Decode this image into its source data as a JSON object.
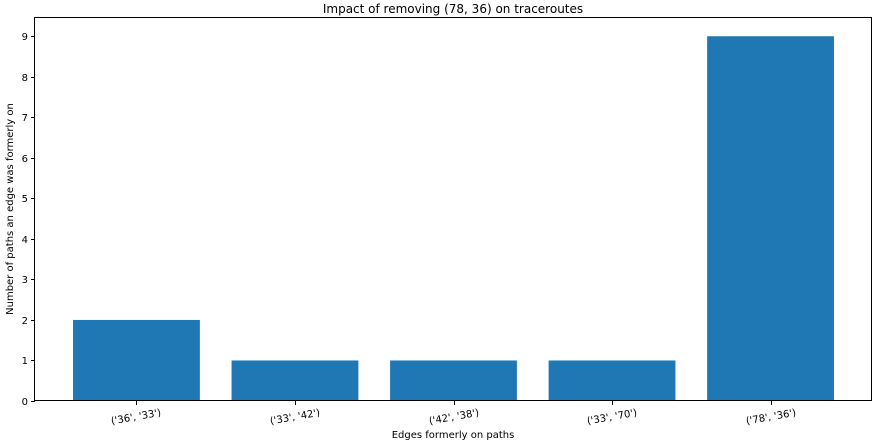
{
  "chart_data": {
    "type": "bar",
    "title": "Impact of removing (78, 36) on traceroutes",
    "xlabel": "Edges formerly on paths",
    "ylabel": "Number of paths an edge was formerly on",
    "categories": [
      "('36', '33')",
      "('33', '42')",
      "('42', '38')",
      "('33', '70')",
      "('78', '36')"
    ],
    "values": [
      2,
      1,
      1,
      1,
      9
    ],
    "ylim": [
      0,
      9.45
    ],
    "yticks": [
      0,
      1,
      2,
      3,
      4,
      5,
      6,
      7,
      8,
      9
    ],
    "bar_color": "#1f77b4",
    "grid": false,
    "x_tick_rotation_deg": -10
  }
}
